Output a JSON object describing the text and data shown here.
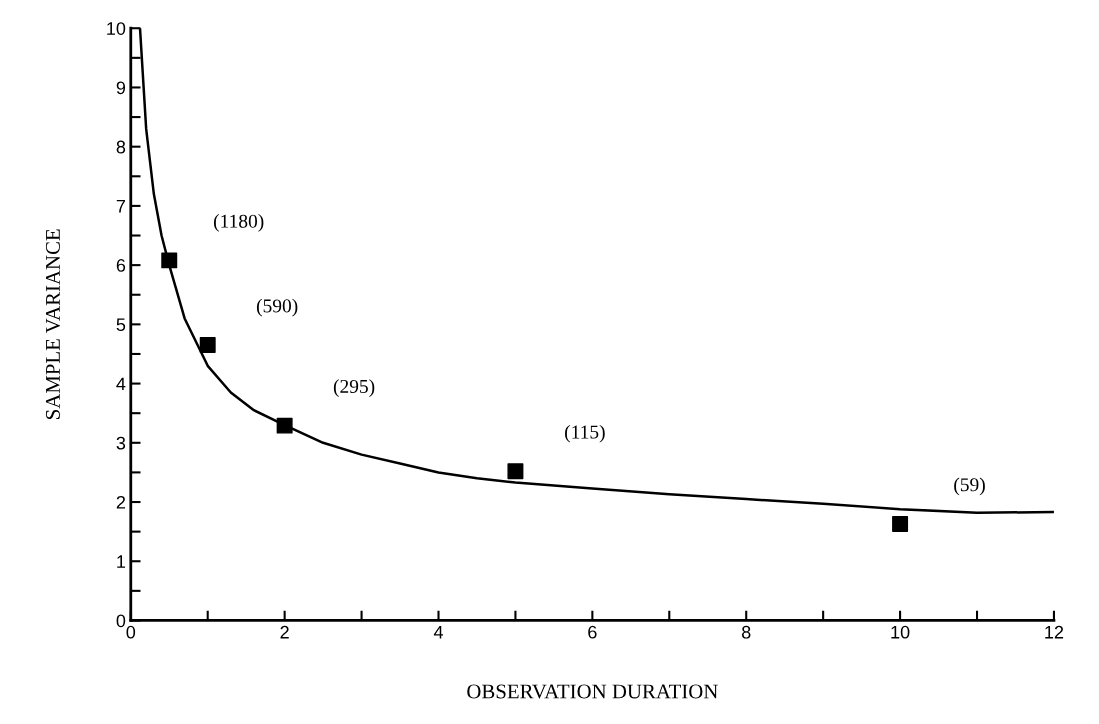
{
  "chart_data": {
    "type": "scatter",
    "xlabel": "OBSERVATION DURATION",
    "ylabel": "SAMPLE VARIANCE",
    "xlim": [
      0,
      12
    ],
    "ylim": [
      0,
      10
    ],
    "xticks": [
      0,
      {
        "value": 1,
        "label": null
      },
      2,
      {
        "value": 3,
        "label": null
      },
      4,
      {
        "value": 5,
        "label": null
      },
      6,
      {
        "value": 7,
        "label": null
      },
      8,
      {
        "value": 9,
        "label": null
      },
      10,
      {
        "value": 11,
        "label": null
      },
      12
    ],
    "yticks": [
      0,
      {
        "value": 0.5,
        "label": null
      },
      1,
      {
        "value": 1.5,
        "label": null
      },
      2,
      {
        "value": 2.5,
        "label": null
      },
      3,
      {
        "value": 3.5,
        "label": null
      },
      4,
      {
        "value": 4.5,
        "label": null
      },
      5,
      {
        "value": 5.5,
        "label": null
      },
      6,
      {
        "value": 6.5,
        "label": null
      },
      7,
      {
        "value": 7.5,
        "label": null
      },
      8,
      {
        "value": 8.5,
        "label": null
      },
      9,
      {
        "value": 9.5,
        "label": null
      },
      10
    ],
    "grid": false,
    "legend": false,
    "series": [
      {
        "color": "#000000",
        "marker": "square",
        "x": [
          0.5,
          1,
          2,
          5,
          10
        ],
        "values": [
          6.08,
          4.65,
          3.29,
          2.52,
          1.63
        ]
      },
      {
        "type": "line",
        "color": "#000000",
        "marker": "none",
        "line_style": "solid",
        "x": [
          0.12,
          0.2,
          0.3,
          0.4,
          0.5,
          0.7,
          1,
          1.3,
          1.6,
          2,
          2.5,
          3,
          3.5,
          4,
          4.5,
          5,
          6,
          7,
          8,
          9,
          10,
          11,
          12
        ],
        "values": [
          10,
          8.3,
          7.2,
          6.5,
          6.0,
          5.1,
          4.3,
          3.85,
          3.55,
          3.3,
          3.0,
          2.8,
          2.65,
          2.5,
          2.4,
          2.33,
          2.23,
          2.13,
          2.05,
          1.97,
          1.88,
          1.82,
          1.83
        ]
      }
    ],
    "annotations": [
      "(1180)",
      "(590)",
      "(295)",
      "(115)",
      "(59)"
    ]
  }
}
